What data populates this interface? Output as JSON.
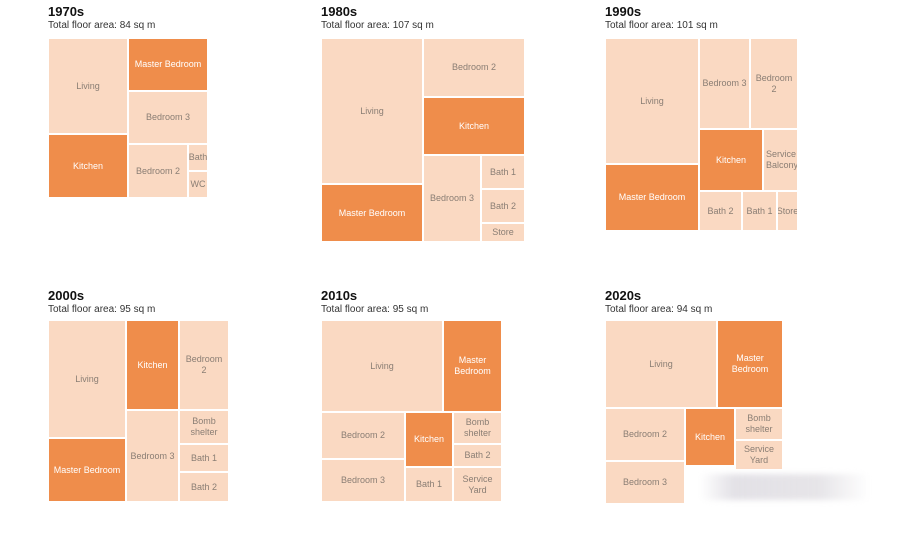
{
  "colors": {
    "room": "#fad9c2",
    "highlight": "#ef8d4b",
    "divider": "#ffffff"
  },
  "chart_data": [
    {
      "type": "treemap",
      "title": "1970s",
      "subtitle": "Total floor area: 84 sq m",
      "rooms": [
        {
          "label": "Living",
          "highlight": false
        },
        {
          "label": "Master Bedroom",
          "highlight": true
        },
        {
          "label": "Bedroom 3",
          "highlight": false
        },
        {
          "label": "Kitchen",
          "highlight": true
        },
        {
          "label": "Bedroom 2",
          "highlight": false
        },
        {
          "label": "Bath",
          "highlight": false
        },
        {
          "label": "WC",
          "highlight": false
        }
      ]
    },
    {
      "type": "treemap",
      "title": "1980s",
      "subtitle": "Total floor area: 107 sq m",
      "rooms": [
        {
          "label": "Living",
          "highlight": false
        },
        {
          "label": "Bedroom 2",
          "highlight": false
        },
        {
          "label": "Kitchen",
          "highlight": true
        },
        {
          "label": "Master Bedroom",
          "highlight": true
        },
        {
          "label": "Bedroom 3",
          "highlight": false
        },
        {
          "label": "Bath 1",
          "highlight": false
        },
        {
          "label": "Bath 2",
          "highlight": false
        },
        {
          "label": "Store",
          "highlight": false
        }
      ]
    },
    {
      "type": "treemap",
      "title": "1990s",
      "subtitle": "Total floor area: 101 sq m",
      "rooms": [
        {
          "label": "Living",
          "highlight": false
        },
        {
          "label": "Bedroom 3",
          "highlight": false
        },
        {
          "label": "Bedroom 2",
          "highlight": false
        },
        {
          "label": "Kitchen",
          "highlight": true
        },
        {
          "label": "Service Balcony",
          "highlight": false
        },
        {
          "label": "Master Bedroom",
          "highlight": true
        },
        {
          "label": "Bath 2",
          "highlight": false
        },
        {
          "label": "Bath 1",
          "highlight": false
        },
        {
          "label": "Store",
          "highlight": false
        }
      ]
    },
    {
      "type": "treemap",
      "title": "2000s",
      "subtitle": "Total floor area: 95 sq m",
      "rooms": [
        {
          "label": "Living",
          "highlight": false
        },
        {
          "label": "Kitchen",
          "highlight": true
        },
        {
          "label": "Bedroom 2",
          "highlight": false
        },
        {
          "label": "Master Bedroom",
          "highlight": true
        },
        {
          "label": "Bedroom 3",
          "highlight": false
        },
        {
          "label": "Bomb shelter",
          "highlight": false
        },
        {
          "label": "Bath 1",
          "highlight": false
        },
        {
          "label": "Bath 2",
          "highlight": false
        }
      ]
    },
    {
      "type": "treemap",
      "title": "2010s",
      "subtitle": "Total floor area: 95 sq m",
      "rooms": [
        {
          "label": "Living",
          "highlight": false
        },
        {
          "label": "Master Bedroom",
          "highlight": true
        },
        {
          "label": "Bedroom 2",
          "highlight": false
        },
        {
          "label": "Kitchen",
          "highlight": true
        },
        {
          "label": "Bomb shelter",
          "highlight": false
        },
        {
          "label": "Bedroom 3",
          "highlight": false
        },
        {
          "label": "Bath 2",
          "highlight": false
        },
        {
          "label": "Bath 1",
          "highlight": false
        },
        {
          "label": "Service Yard",
          "highlight": false
        }
      ]
    },
    {
      "type": "treemap",
      "title": "2020s",
      "subtitle": "Total floor area: 94 sq m",
      "rooms": [
        {
          "label": "Living",
          "highlight": false
        },
        {
          "label": "Master Bedroom",
          "highlight": true
        },
        {
          "label": "Bedroom 2",
          "highlight": false
        },
        {
          "label": "Kitchen",
          "highlight": true
        },
        {
          "label": "Bomb shelter",
          "highlight": false
        },
        {
          "label": "Service Yard",
          "highlight": false
        },
        {
          "label": "Bedroom 3",
          "highlight": false
        }
      ]
    }
  ]
}
